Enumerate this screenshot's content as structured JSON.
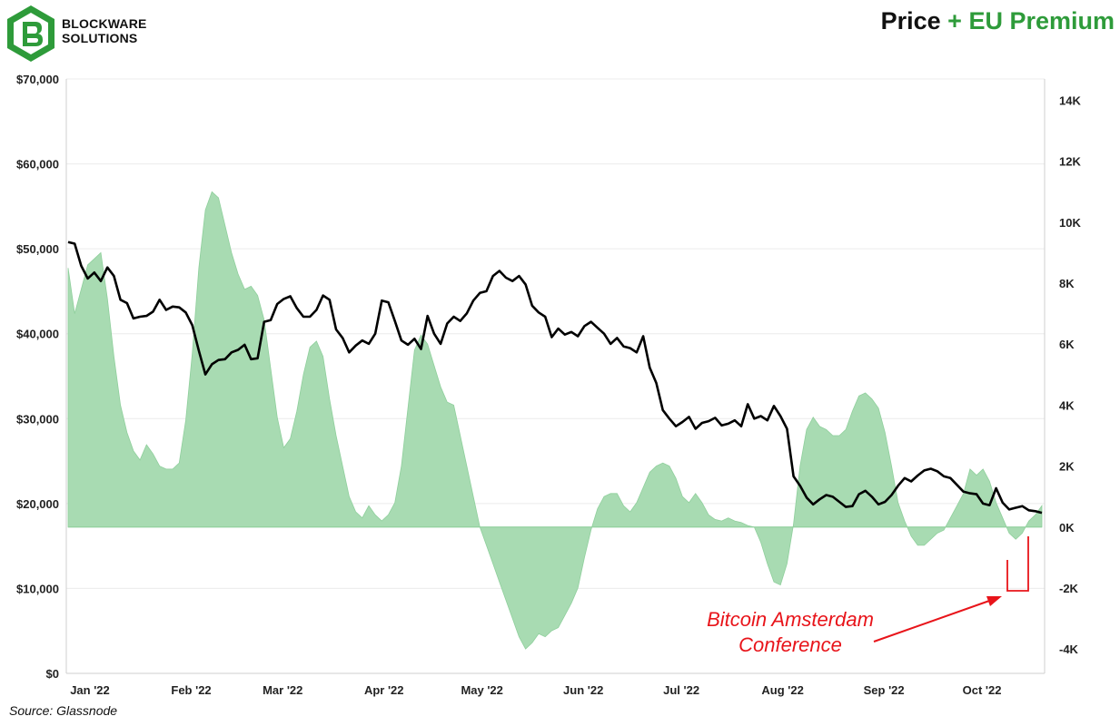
{
  "header": {
    "brand_line1": "BLOCKWARE",
    "brand_line2": "SOLUTIONS",
    "title_part1": "Price",
    "title_part2": " + EU Premium"
  },
  "footer": {
    "source": "Source: Glassnode"
  },
  "annotation": {
    "line1": "Bitcoin Amsterdam",
    "line2": "Conference",
    "color": "#e8141a"
  },
  "colors": {
    "price_line": "#000000",
    "premium_fill": "#a8dbb2",
    "premium_stroke": "#8fcf9c",
    "title_accent": "#2e9b3a",
    "logo": "#2e9b3a"
  },
  "chart_data": {
    "type": "line",
    "x_tick_labels": [
      "Jan '22",
      "Feb '22",
      "Mar '22",
      "Apr '22",
      "May '22",
      "Jun '22",
      "Jul '22",
      "Aug '22",
      "Sep '22",
      "Oct '22"
    ],
    "y_left_tick_labels": [
      "$0",
      "$10,000",
      "$20,000",
      "$30,000",
      "$40,000",
      "$50,000",
      "$60,000",
      "$70,000"
    ],
    "y_left_ticks": [
      0,
      10000,
      20000,
      30000,
      40000,
      50000,
      60000,
      70000
    ],
    "y_right_tick_labels": [
      "-4K",
      "-2K",
      "0K",
      "2K",
      "4K",
      "6K",
      "8K",
      "10K",
      "12K",
      "14K"
    ],
    "y_right_ticks": [
      -4000,
      -2000,
      0,
      2000,
      4000,
      6000,
      8000,
      10000,
      12000,
      14000
    ],
    "ylim_left": [
      0,
      70000
    ],
    "ylim_right": [
      -4800,
      14700
    ],
    "xlim_days": [
      0,
      298
    ],
    "grid": "horizontal",
    "series": [
      {
        "axis": "left",
        "points": [
          [
            0,
            50800
          ],
          [
            2,
            50600
          ],
          [
            4,
            48000
          ],
          [
            6,
            46500
          ],
          [
            8,
            47200
          ],
          [
            10,
            46200
          ],
          [
            12,
            47800
          ],
          [
            14,
            46800
          ],
          [
            16,
            44000
          ],
          [
            18,
            43600
          ],
          [
            20,
            41800
          ],
          [
            22,
            42000
          ],
          [
            24,
            42100
          ],
          [
            26,
            42600
          ],
          [
            28,
            44000
          ],
          [
            30,
            42800
          ],
          [
            32,
            43200
          ],
          [
            34,
            43100
          ],
          [
            36,
            42500
          ],
          [
            38,
            41000
          ],
          [
            40,
            38000
          ],
          [
            42,
            35200
          ],
          [
            44,
            36400
          ],
          [
            46,
            36900
          ],
          [
            48,
            37000
          ],
          [
            50,
            37800
          ],
          [
            52,
            38100
          ],
          [
            54,
            38700
          ],
          [
            56,
            37000
          ],
          [
            58,
            37100
          ],
          [
            60,
            41400
          ],
          [
            62,
            41600
          ],
          [
            64,
            43500
          ],
          [
            66,
            44100
          ],
          [
            68,
            44400
          ],
          [
            70,
            43000
          ],
          [
            72,
            42000
          ],
          [
            74,
            42000
          ],
          [
            76,
            42800
          ],
          [
            78,
            44500
          ],
          [
            80,
            44000
          ],
          [
            82,
            40500
          ],
          [
            84,
            39500
          ],
          [
            86,
            37800
          ],
          [
            88,
            38600
          ],
          [
            90,
            39200
          ],
          [
            92,
            38800
          ],
          [
            94,
            40000
          ],
          [
            96,
            43900
          ],
          [
            98,
            43700
          ],
          [
            100,
            41500
          ],
          [
            102,
            39200
          ],
          [
            104,
            38700
          ],
          [
            106,
            39400
          ],
          [
            108,
            38200
          ],
          [
            110,
            42100
          ],
          [
            112,
            40000
          ],
          [
            114,
            38800
          ],
          [
            116,
            41200
          ],
          [
            118,
            42000
          ],
          [
            120,
            41500
          ],
          [
            122,
            42400
          ],
          [
            124,
            43900
          ],
          [
            126,
            44800
          ],
          [
            128,
            45000
          ],
          [
            130,
            46800
          ],
          [
            132,
            47400
          ],
          [
            134,
            46600
          ],
          [
            136,
            46200
          ],
          [
            138,
            46800
          ],
          [
            140,
            45800
          ],
          [
            142,
            43300
          ],
          [
            144,
            42500
          ],
          [
            146,
            42000
          ],
          [
            148,
            39600
          ],
          [
            150,
            40600
          ],
          [
            152,
            39900
          ],
          [
            154,
            40200
          ],
          [
            156,
            39700
          ],
          [
            158,
            40900
          ],
          [
            160,
            41400
          ],
          [
            162,
            40700
          ],
          [
            164,
            40000
          ],
          [
            166,
            38800
          ],
          [
            168,
            39500
          ],
          [
            170,
            38500
          ],
          [
            172,
            38300
          ],
          [
            174,
            37800
          ],
          [
            176,
            39700
          ],
          [
            178,
            36000
          ],
          [
            180,
            34200
          ],
          [
            182,
            31000
          ],
          [
            184,
            30000
          ],
          [
            186,
            29100
          ],
          [
            188,
            29600
          ],
          [
            190,
            30200
          ],
          [
            192,
            28800
          ],
          [
            194,
            29500
          ],
          [
            196,
            29700
          ],
          [
            198,
            30100
          ],
          [
            200,
            29200
          ],
          [
            202,
            29400
          ],
          [
            204,
            29800
          ],
          [
            206,
            29100
          ],
          [
            208,
            31700
          ],
          [
            210,
            30000
          ],
          [
            212,
            30300
          ],
          [
            214,
            29800
          ],
          [
            216,
            31500
          ],
          [
            218,
            30300
          ],
          [
            220,
            28800
          ],
          [
            222,
            23200
          ],
          [
            224,
            22100
          ],
          [
            226,
            20700
          ],
          [
            228,
            19900
          ],
          [
            230,
            20500
          ],
          [
            232,
            21000
          ],
          [
            234,
            20800
          ],
          [
            236,
            20200
          ],
          [
            238,
            19600
          ],
          [
            240,
            19700
          ],
          [
            242,
            21100
          ],
          [
            244,
            21500
          ],
          [
            246,
            20800
          ],
          [
            248,
            19900
          ],
          [
            250,
            20200
          ],
          [
            252,
            21000
          ],
          [
            254,
            22100
          ],
          [
            256,
            23000
          ],
          [
            258,
            22600
          ],
          [
            260,
            23300
          ],
          [
            262,
            23900
          ],
          [
            264,
            24100
          ],
          [
            266,
            23800
          ],
          [
            268,
            23200
          ],
          [
            270,
            23000
          ],
          [
            272,
            22200
          ],
          [
            274,
            21400
          ],
          [
            276,
            21200
          ],
          [
            278,
            21100
          ],
          [
            280,
            20000
          ],
          [
            282,
            19800
          ],
          [
            284,
            21800
          ],
          [
            286,
            20100
          ],
          [
            288,
            19300
          ],
          [
            290,
            19500
          ],
          [
            292,
            19700
          ],
          [
            294,
            19200
          ],
          [
            296,
            19100
          ],
          [
            298,
            18900
          ]
        ]
      },
      {
        "axis": "right",
        "points": [
          [
            0,
            8500
          ],
          [
            2,
            7000
          ],
          [
            4,
            7800
          ],
          [
            6,
            8600
          ],
          [
            8,
            8800
          ],
          [
            10,
            9000
          ],
          [
            12,
            7500
          ],
          [
            14,
            5600
          ],
          [
            16,
            4000
          ],
          [
            18,
            3100
          ],
          [
            20,
            2500
          ],
          [
            22,
            2200
          ],
          [
            24,
            2700
          ],
          [
            26,
            2400
          ],
          [
            28,
            2000
          ],
          [
            30,
            1900
          ],
          [
            32,
            1900
          ],
          [
            34,
            2100
          ],
          [
            36,
            3500
          ],
          [
            38,
            5700
          ],
          [
            40,
            8500
          ],
          [
            42,
            10400
          ],
          [
            44,
            11000
          ],
          [
            46,
            10800
          ],
          [
            48,
            9900
          ],
          [
            50,
            9000
          ],
          [
            52,
            8300
          ],
          [
            54,
            7800
          ],
          [
            56,
            7900
          ],
          [
            58,
            7600
          ],
          [
            60,
            6800
          ],
          [
            62,
            5200
          ],
          [
            64,
            3600
          ],
          [
            66,
            2600
          ],
          [
            68,
            2900
          ],
          [
            70,
            3800
          ],
          [
            72,
            5000
          ],
          [
            74,
            5900
          ],
          [
            76,
            6100
          ],
          [
            78,
            5600
          ],
          [
            80,
            4200
          ],
          [
            82,
            3000
          ],
          [
            84,
            2000
          ],
          [
            86,
            1000
          ],
          [
            88,
            500
          ],
          [
            90,
            300
          ],
          [
            92,
            700
          ],
          [
            94,
            400
          ],
          [
            96,
            200
          ],
          [
            98,
            400
          ],
          [
            100,
            800
          ],
          [
            102,
            2000
          ],
          [
            104,
            3900
          ],
          [
            106,
            5800
          ],
          [
            108,
            6300
          ],
          [
            110,
            6000
          ],
          [
            112,
            5300
          ],
          [
            114,
            4600
          ],
          [
            116,
            4100
          ],
          [
            118,
            4000
          ],
          [
            120,
            3000
          ],
          [
            122,
            2000
          ],
          [
            124,
            1000
          ],
          [
            126,
            0
          ],
          [
            128,
            -600
          ],
          [
            130,
            -1200
          ],
          [
            132,
            -1800
          ],
          [
            134,
            -2400
          ],
          [
            136,
            -3000
          ],
          [
            138,
            -3600
          ],
          [
            140,
            -4000
          ],
          [
            142,
            -3800
          ],
          [
            144,
            -3500
          ],
          [
            146,
            -3600
          ],
          [
            148,
            -3400
          ],
          [
            150,
            -3300
          ],
          [
            152,
            -2900
          ],
          [
            154,
            -2500
          ],
          [
            156,
            -2000
          ],
          [
            158,
            -1000
          ],
          [
            160,
            -100
          ],
          [
            162,
            600
          ],
          [
            164,
            1000
          ],
          [
            166,
            1100
          ],
          [
            168,
            1100
          ],
          [
            170,
            700
          ],
          [
            172,
            500
          ],
          [
            174,
            800
          ],
          [
            176,
            1300
          ],
          [
            178,
            1800
          ],
          [
            180,
            2000
          ],
          [
            182,
            2100
          ],
          [
            184,
            2000
          ],
          [
            186,
            1600
          ],
          [
            188,
            1000
          ],
          [
            190,
            800
          ],
          [
            192,
            1100
          ],
          [
            194,
            800
          ],
          [
            196,
            400
          ],
          [
            198,
            250
          ],
          [
            200,
            200
          ],
          [
            202,
            300
          ],
          [
            204,
            200
          ],
          [
            206,
            150
          ],
          [
            208,
            50
          ],
          [
            210,
            0
          ],
          [
            212,
            -500
          ],
          [
            214,
            -1200
          ],
          [
            216,
            -1800
          ],
          [
            218,
            -1900
          ],
          [
            220,
            -1200
          ],
          [
            222,
            100
          ],
          [
            224,
            2000
          ],
          [
            226,
            3200
          ],
          [
            228,
            3600
          ],
          [
            230,
            3300
          ],
          [
            232,
            3200
          ],
          [
            234,
            3000
          ],
          [
            236,
            3000
          ],
          [
            238,
            3200
          ],
          [
            240,
            3800
          ],
          [
            242,
            4300
          ],
          [
            244,
            4400
          ],
          [
            246,
            4200
          ],
          [
            248,
            3900
          ],
          [
            250,
            3100
          ],
          [
            252,
            2000
          ],
          [
            254,
            800
          ],
          [
            256,
            200
          ],
          [
            258,
            -300
          ],
          [
            260,
            -600
          ],
          [
            262,
            -600
          ],
          [
            264,
            -400
          ],
          [
            266,
            -200
          ],
          [
            268,
            -100
          ],
          [
            270,
            300
          ],
          [
            272,
            700
          ],
          [
            274,
            1100
          ],
          [
            276,
            1900
          ],
          [
            278,
            1700
          ],
          [
            280,
            1900
          ],
          [
            282,
            1500
          ],
          [
            284,
            800
          ],
          [
            286,
            300
          ],
          [
            288,
            -200
          ],
          [
            290,
            -400
          ],
          [
            292,
            -200
          ],
          [
            294,
            200
          ],
          [
            296,
            400
          ],
          [
            298,
            700
          ]
        ]
      }
    ]
  }
}
